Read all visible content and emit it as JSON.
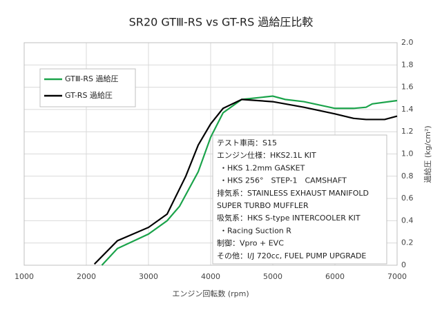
{
  "chart_data": {
    "type": "line",
    "title": "SR20 GTⅢ-RS vs GT-RS 過給圧比較",
    "x_label": "エンジン回転数 (rpm)",
    "y_label": "過給圧 (kg/cm²)",
    "xlim": [
      1000,
      7000
    ],
    "xticks": [
      1000,
      2000,
      3000,
      4000,
      5000,
      6000,
      7000
    ],
    "ylim": [
      0,
      2
    ],
    "yticks": [
      0,
      0.2,
      0.4,
      0.6,
      0.8,
      {
        "value": 1,
        "label": "1.0"
      },
      1.2,
      1.4,
      1.6,
      1.8,
      {
        "value": 2,
        "label": "2.0"
      }
    ],
    "y_axis_side": "right",
    "grid": true,
    "legend_position": "upper left",
    "series": [
      {
        "name": "GTⅢ-RS 過給圧",
        "color": "#1aa34a",
        "x": [
          2250,
          2500,
          3000,
          3300,
          3500,
          3800,
          4000,
          4200,
          4500,
          5000,
          5200,
          5500,
          6000,
          6300,
          6500,
          6600,
          7000
        ],
        "values": [
          0.0,
          0.15,
          0.28,
          0.4,
          0.53,
          0.84,
          1.15,
          1.37,
          1.49,
          1.52,
          1.49,
          1.47,
          1.41,
          1.41,
          1.42,
          1.45,
          1.48
        ]
      },
      {
        "name": "GT-RS 過給圧",
        "color": "#000000",
        "x": [
          2130,
          2200,
          2500,
          3000,
          3300,
          3600,
          3800,
          4000,
          4200,
          4500,
          5000,
          5500,
          6000,
          6300,
          6500,
          6800,
          7000
        ],
        "values": [
          0.01,
          0.05,
          0.22,
          0.34,
          0.46,
          0.8,
          1.08,
          1.27,
          1.41,
          1.49,
          1.47,
          1.42,
          1.36,
          1.32,
          1.31,
          1.31,
          1.34
        ]
      }
    ],
    "annotation_lines": [
      "テスト車両：S15",
      "エンジン仕様：HKS2.1L KIT",
      "・HKS 1.2mm GASKET",
      "・HKS 256°　STEP-1　CAMSHAFT",
      "排気系：STAINLESS EXHAUST MANIFOLD",
      "SUPER TURBO MUFFLER",
      "吸気系：HKS S-type INTERCOOLER KIT",
      "・Racing Suction R",
      "制御：Vpro + EVC",
      "その他：I/J 720cc, FUEL PUMP UPGRADE"
    ]
  }
}
